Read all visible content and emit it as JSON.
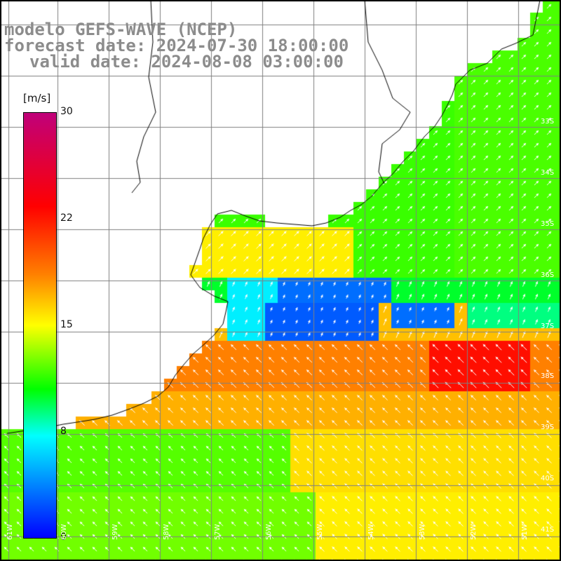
{
  "header": {
    "title": "modelo GEFS-WAVE (NCEP)",
    "forecast": "forecast date: 2024-07-30 18:00:00",
    "valid": "valid date: 2024-08-08 03:00:00"
  },
  "colorbar": {
    "unit": "[m/s]",
    "ticks": [
      "30",
      "22",
      "15",
      "8",
      "0"
    ],
    "min": 0,
    "max": 30,
    "colors": [
      "#0000ff",
      "#0080ff",
      "#00ffff",
      "#00ff00",
      "#ffff00",
      "#ff8000",
      "#ff0000",
      "#c0007a"
    ]
  },
  "map": {
    "lat_labels": [
      "33S",
      "34S",
      "35S",
      "36S",
      "37S",
      "38S",
      "39S",
      "40S",
      "41S"
    ],
    "lon_labels": [
      "61W",
      "60W",
      "59W",
      "58W",
      "57W",
      "56W",
      "55W",
      "54W",
      "53W",
      "52W",
      "51W"
    ],
    "field_note": "wind speed with wind direction arrows"
  }
}
